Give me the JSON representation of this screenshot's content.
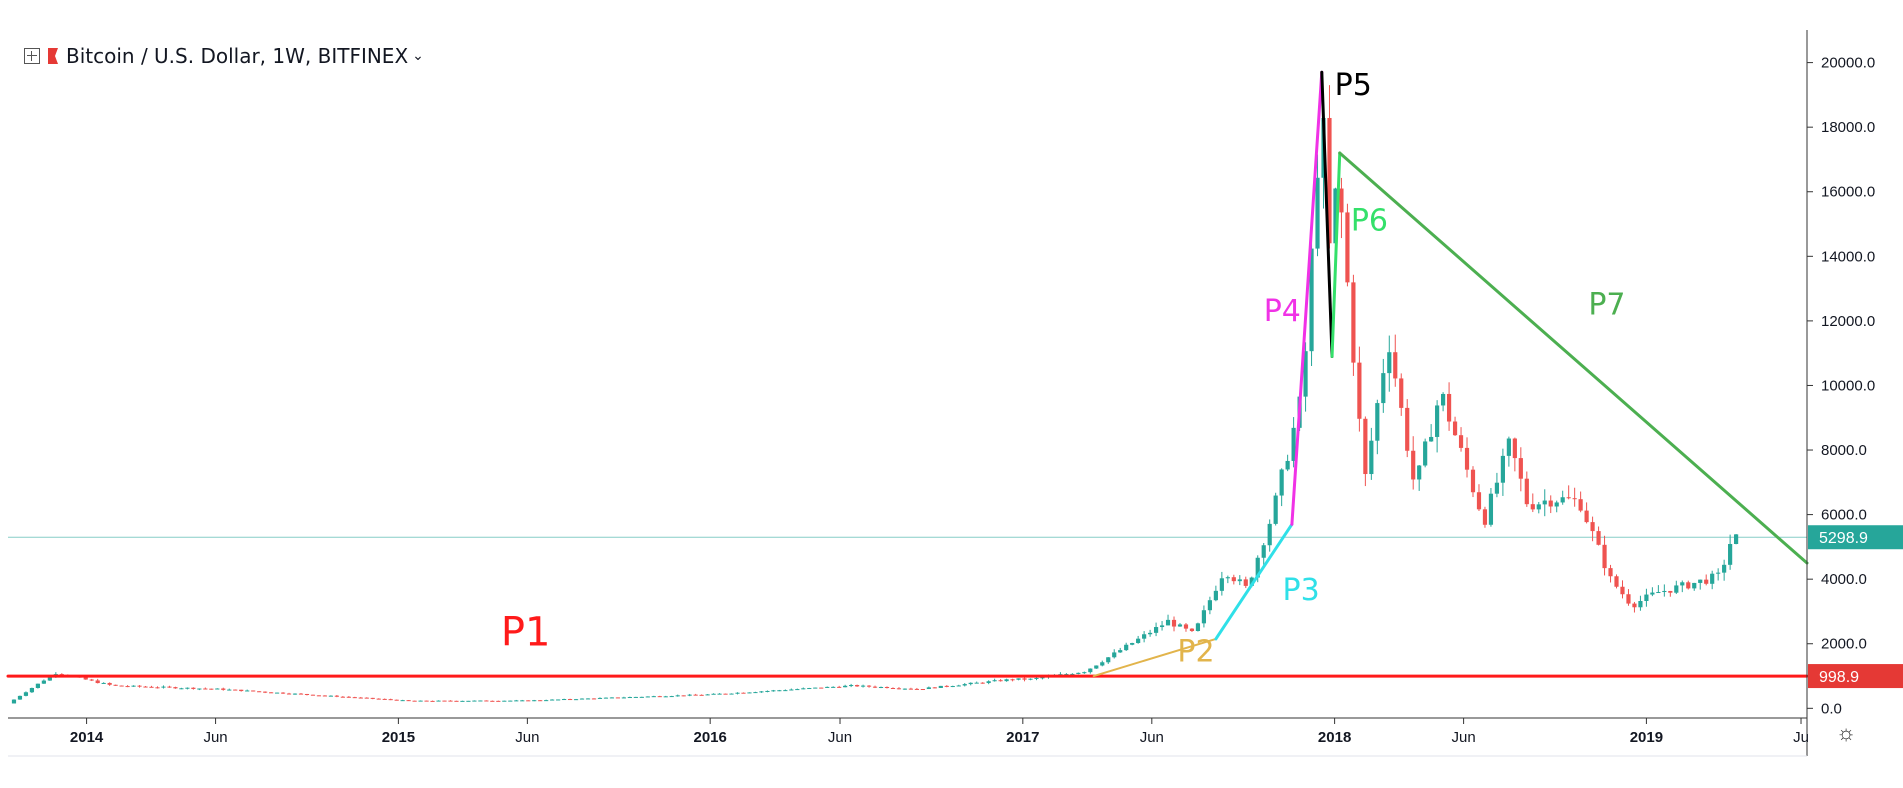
{
  "legend": {
    "symbol": "Bitcoin / U.S. Dollar, 1W, BITFINEX",
    "icon_left": "crosshair-plus-icon",
    "icon_flag": "red-flag-icon",
    "icon_chevron": "chevron-down-icon"
  },
  "settings": {
    "icon": "gear-icon",
    "glyph": "☼"
  },
  "chart_data": {
    "type": "candlestick",
    "title": "Bitcoin / U.S. Dollar, 1W, BITFINEX",
    "y_axis": {
      "ticks": [
        0,
        2000,
        4000,
        6000,
        8000,
        10000,
        12000,
        14000,
        16000,
        18000,
        20000
      ],
      "tick_labels": [
        "0.0",
        "2000.0",
        "4000.0",
        "6000.0",
        "8000.0",
        "10000.0",
        "12000.0",
        "14000.0",
        "16000.0",
        "18000.0",
        "20000.0"
      ],
      "ylim": [
        -300,
        20700
      ]
    },
    "x_axis": {
      "ticks": [
        "2014-01-01",
        "2014-06-01",
        "2015-01-01",
        "2015-06-01",
        "2016-01-01",
        "2016-06-01",
        "2017-01-01",
        "2017-06-01",
        "2018-01-01",
        "2018-06-01",
        "2019-01-01",
        "2019-07-01"
      ],
      "tick_labels": [
        "2014",
        "Jun",
        "2015",
        "Jun",
        "2016",
        "Jun",
        "2017",
        "Jun",
        "2018",
        "Jun",
        "2019",
        "Ju"
      ],
      "xlim": [
        "2013-10-01",
        "2019-07-08"
      ]
    },
    "price_line": {
      "value": 5298.9,
      "label": "5298.9",
      "color": "#26a69a"
    },
    "support_line": {
      "value": 998.9,
      "label": "998.9",
      "color": "#e53935"
    },
    "colors": {
      "up": "#26a69a",
      "down": "#ef5350"
    },
    "price_path": [
      [
        "2013-10-01",
        150
      ],
      [
        "2013-11-25",
        1100
      ],
      [
        "2014-02-01",
        700
      ],
      [
        "2014-06-01",
        600
      ],
      [
        "2014-09-01",
        450
      ],
      [
        "2015-01-15",
        230
      ],
      [
        "2015-06-01",
        240
      ],
      [
        "2015-11-05",
        380
      ],
      [
        "2016-01-01",
        430
      ],
      [
        "2016-06-15",
        700
      ],
      [
        "2016-09-01",
        600
      ],
      [
        "2016-12-20",
        900
      ],
      [
        "2017-01-10",
        900
      ],
      [
        "2017-03-15",
        1150
      ],
      [
        "2017-05-20",
        2200
      ],
      [
        "2017-06-20",
        2700
      ],
      [
        "2017-07-20",
        2300
      ],
      [
        "2017-08-25",
        4300
      ],
      [
        "2017-09-20",
        3700
      ],
      [
        "2017-10-20",
        6000
      ],
      [
        "2017-11-25",
        9800
      ],
      [
        "2017-12-17",
        19000
      ],
      [
        "2017-12-25",
        14000
      ],
      [
        "2018-01-05",
        16500
      ],
      [
        "2018-02-05",
        7000
      ],
      [
        "2018-03-05",
        11500
      ],
      [
        "2018-04-05",
        6800
      ],
      [
        "2018-05-05",
        9800
      ],
      [
        "2018-06-25",
        5800
      ],
      [
        "2018-07-25",
        8200
      ],
      [
        "2018-08-15",
        6300
      ],
      [
        "2018-09-15",
        6500
      ],
      [
        "2018-10-15",
        6400
      ],
      [
        "2018-11-20",
        4000
      ],
      [
        "2018-12-15",
        3200
      ],
      [
        "2019-01-15",
        3600
      ],
      [
        "2019-02-15",
        3800
      ],
      [
        "2019-03-28",
        4100
      ],
      [
        "2019-04-10",
        5200
      ],
      [
        "2019-04-20",
        5299
      ]
    ],
    "annotations": [
      {
        "label": "P1",
        "color": "#ff1a1a",
        "at": [
          "2015-05-01",
          1950
        ]
      },
      {
        "label": "P2",
        "color": "#e2b44b",
        "at": [
          "2017-07-01",
          1450
        ]
      },
      {
        "label": "P3",
        "color": "#2fe0e8",
        "at": [
          "2017-11-01",
          3350
        ]
      },
      {
        "label": "P4",
        "color": "#f032e6",
        "at": [
          "2017-10-10",
          12000
        ]
      },
      {
        "label": "P5",
        "color": "#000000",
        "at": [
          "2018-01-01",
          19000
        ]
      },
      {
        "label": "P6",
        "color": "#34e06a",
        "at": [
          "2018-01-20",
          14800
        ]
      },
      {
        "label": "P7",
        "color": "#4caf50",
        "at": [
          "2018-10-25",
          12200
        ]
      }
    ],
    "trendlines": [
      {
        "name": "P1",
        "color": "#ff1a1a",
        "width": 3,
        "points": [
          [
            "2013-10-01",
            998.9
          ],
          [
            "2019-07-08",
            998.9
          ]
        ]
      },
      {
        "name": "P2",
        "color": "#e2b44b",
        "width": 2,
        "points": [
          [
            "2017-03-25",
            1000
          ],
          [
            "2017-08-15",
            2150
          ]
        ]
      },
      {
        "name": "P3",
        "color": "#2fe0e8",
        "width": 3,
        "points": [
          [
            "2017-08-15",
            2150
          ],
          [
            "2017-11-12",
            5700
          ]
        ]
      },
      {
        "name": "P4",
        "color": "#f032e6",
        "width": 3,
        "points": [
          [
            "2017-11-12",
            5700
          ],
          [
            "2017-12-17",
            19700
          ]
        ]
      },
      {
        "name": "P5",
        "color": "#000000",
        "width": 3,
        "points": [
          [
            "2017-12-17",
            19700
          ],
          [
            "2017-12-29",
            10900
          ]
        ]
      },
      {
        "name": "P6",
        "color": "#34e06a",
        "width": 3,
        "points": [
          [
            "2017-12-29",
            10900
          ],
          [
            "2018-01-07",
            17200
          ]
        ]
      },
      {
        "name": "P7",
        "color": "#4caf50",
        "width": 3,
        "points": [
          [
            "2018-01-07",
            17200
          ],
          [
            "2019-07-08",
            4500
          ]
        ]
      }
    ]
  }
}
